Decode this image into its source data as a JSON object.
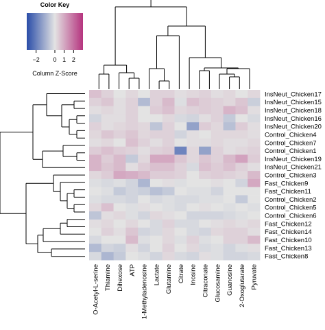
{
  "chart_data": {
    "type": "heatmap",
    "title": "",
    "xlabel": "",
    "ylabel": "",
    "columns": [
      "O-Acetyl-L-serine",
      "Thiamine",
      "Dihexose",
      "ATP",
      "1-Methyladenosine",
      "Lactate",
      "Glutamine",
      "Citrate",
      "Inosine",
      "Citraconate",
      "Glucosamine",
      "Guanosine",
      "2-Oxoglutarate",
      "Pyruvate"
    ],
    "rows": [
      "InsNeut_Chicken17",
      "InsNeut_Chicken15",
      "InsNeut_Chicken18",
      "InsNeut_Chicken16",
      "InsNeut_Chicken20",
      "Control_Chicken4",
      "Control_Chicken7",
      "Control_Chicken1",
      "InsNeut_Chicken19",
      "InsNeut_Chicken21",
      "Control_Chicken3",
      "Fast_Chicken9",
      "Fast_Chicken11",
      "Control_Chicken2",
      "Control_Chicken5",
      "Control_Chicken6",
      "Fast_Chicken12",
      "Fast_Chicken14",
      "Fast_Chicken10",
      "Fast_Chicken13",
      "Fast_Chicken8"
    ],
    "values": [
      [
        0.6,
        0.3,
        0.0,
        0.2,
        0.0,
        0.3,
        0.3,
        0.1,
        0.2,
        0.3,
        0.1,
        0.2,
        0.0,
        0.2
      ],
      [
        0.3,
        0.5,
        0.1,
        0.3,
        -0.8,
        0.3,
        0.7,
        -0.1,
        0.6,
        0.4,
        0.3,
        0.2,
        0.5,
        -0.4
      ],
      [
        0.1,
        0.2,
        0.1,
        0.3,
        0.0,
        0.4,
        0.6,
        0.2,
        0.3,
        0.4,
        0.3,
        0.8,
        0.6,
        0.1
      ],
      [
        -0.3,
        0.1,
        0.1,
        0.3,
        0.0,
        0.0,
        0.2,
        -0.2,
        -0.3,
        0.1,
        0.3,
        -0.5,
        0.0,
        -0.2
      ],
      [
        0.3,
        0.1,
        0.2,
        0.3,
        0.2,
        -0.6,
        0.3,
        0.0,
        -1.3,
        0.4,
        0.2,
        -0.7,
        0.4,
        0.1
      ],
      [
        0.2,
        0.5,
        0.3,
        0.5,
        0.2,
        0.3,
        0.3,
        -0.3,
        0.1,
        0.0,
        0.2,
        0.2,
        0.2,
        0.1
      ],
      [
        0.1,
        0.2,
        0.0,
        0.6,
        0.3,
        0.1,
        0.3,
        0.0,
        0.1,
        0.1,
        0.2,
        0.1,
        0.1,
        0.2
      ],
      [
        0.4,
        0.6,
        0.4,
        0.3,
        0.1,
        0.3,
        0.4,
        -1.9,
        0.2,
        -1.3,
        0.3,
        0.1,
        0.2,
        0.3
      ],
      [
        0.8,
        0.4,
        0.7,
        -0.5,
        0.2,
        1.0,
        1.0,
        0.5,
        0.2,
        0.5,
        0.3,
        0.7,
        1.1,
        0.4
      ],
      [
        0.8,
        0.5,
        0.7,
        0.1,
        0.4,
        0.6,
        0.6,
        0.3,
        -0.2,
        0.6,
        0.4,
        0.6,
        0.3,
        0.1
      ],
      [
        0.2,
        0.4,
        1.0,
        0.9,
        0.7,
        0.4,
        0.4,
        0.3,
        0.0,
        0.3,
        0.4,
        0.3,
        0.2,
        0.7
      ],
      [
        -0.1,
        -0.2,
        -0.1,
        -0.3,
        -0.9,
        0.0,
        0.1,
        -0.1,
        0.0,
        0.0,
        0.1,
        0.0,
        -0.3,
        1.0
      ],
      [
        0.0,
        -0.1,
        -0.5,
        -0.3,
        -0.4,
        -0.7,
        -0.5,
        0.0,
        -0.1,
        -0.1,
        -0.3,
        0.0,
        0.0,
        0.0
      ],
      [
        -0.1,
        -0.2,
        -0.2,
        -0.3,
        0.0,
        -0.2,
        -0.1,
        -0.2,
        -0.2,
        -0.1,
        -0.1,
        0.0,
        -0.5,
        0.0
      ],
      [
        0.2,
        0.6,
        0.0,
        -0.1,
        0.1,
        0.0,
        -0.1,
        -0.2,
        0.0,
        0.1,
        0.0,
        -0.1,
        0.0,
        -0.1
      ],
      [
        -0.6,
        0.1,
        0.2,
        -0.1,
        -0.3,
        0.2,
        0.1,
        0.0,
        -0.3,
        -0.3,
        -0.3,
        -0.2,
        -0.1,
        0.0
      ],
      [
        0.1,
        0.2,
        0.0,
        0.2,
        0.0,
        -0.2,
        0.3,
        -0.2,
        -0.2,
        0.0,
        0.1,
        0.2,
        0.1,
        0.2
      ],
      [
        0.0,
        0.3,
        0.1,
        0.5,
        -0.3,
        -0.2,
        0.2,
        0.0,
        -0.2,
        -0.3,
        0.2,
        0.3,
        0.3,
        0.1
      ],
      [
        -0.2,
        0.0,
        0.0,
        0.7,
        -0.1,
        0.0,
        0.2,
        -0.1,
        0.3,
        -0.1,
        0.0,
        0.3,
        0.3,
        0.7
      ],
      [
        -0.8,
        -0.3,
        -0.4,
        0.1,
        -0.3,
        0.0,
        0.3,
        0.0,
        0.2,
        -0.2,
        -0.1,
        -0.3,
        -0.1,
        0.1
      ],
      [
        -0.2,
        -0.9,
        -0.5,
        0.0,
        -0.1,
        -0.3,
        0.2,
        -0.2,
        -0.3,
        0.1,
        -0.1,
        -0.3,
        -0.3,
        -0.2
      ]
    ],
    "scale_range": [
      -3,
      3
    ],
    "color_low": "#2a4da8",
    "color_mid": "#e3e3e3",
    "color_high": "#b5337e",
    "key": {
      "title": "Color Key",
      "ticks": [
        -2,
        0,
        1,
        2
      ],
      "tick_labels": [
        "−2",
        "0",
        "1",
        "2"
      ],
      "label": "Column Z-Score"
    }
  }
}
